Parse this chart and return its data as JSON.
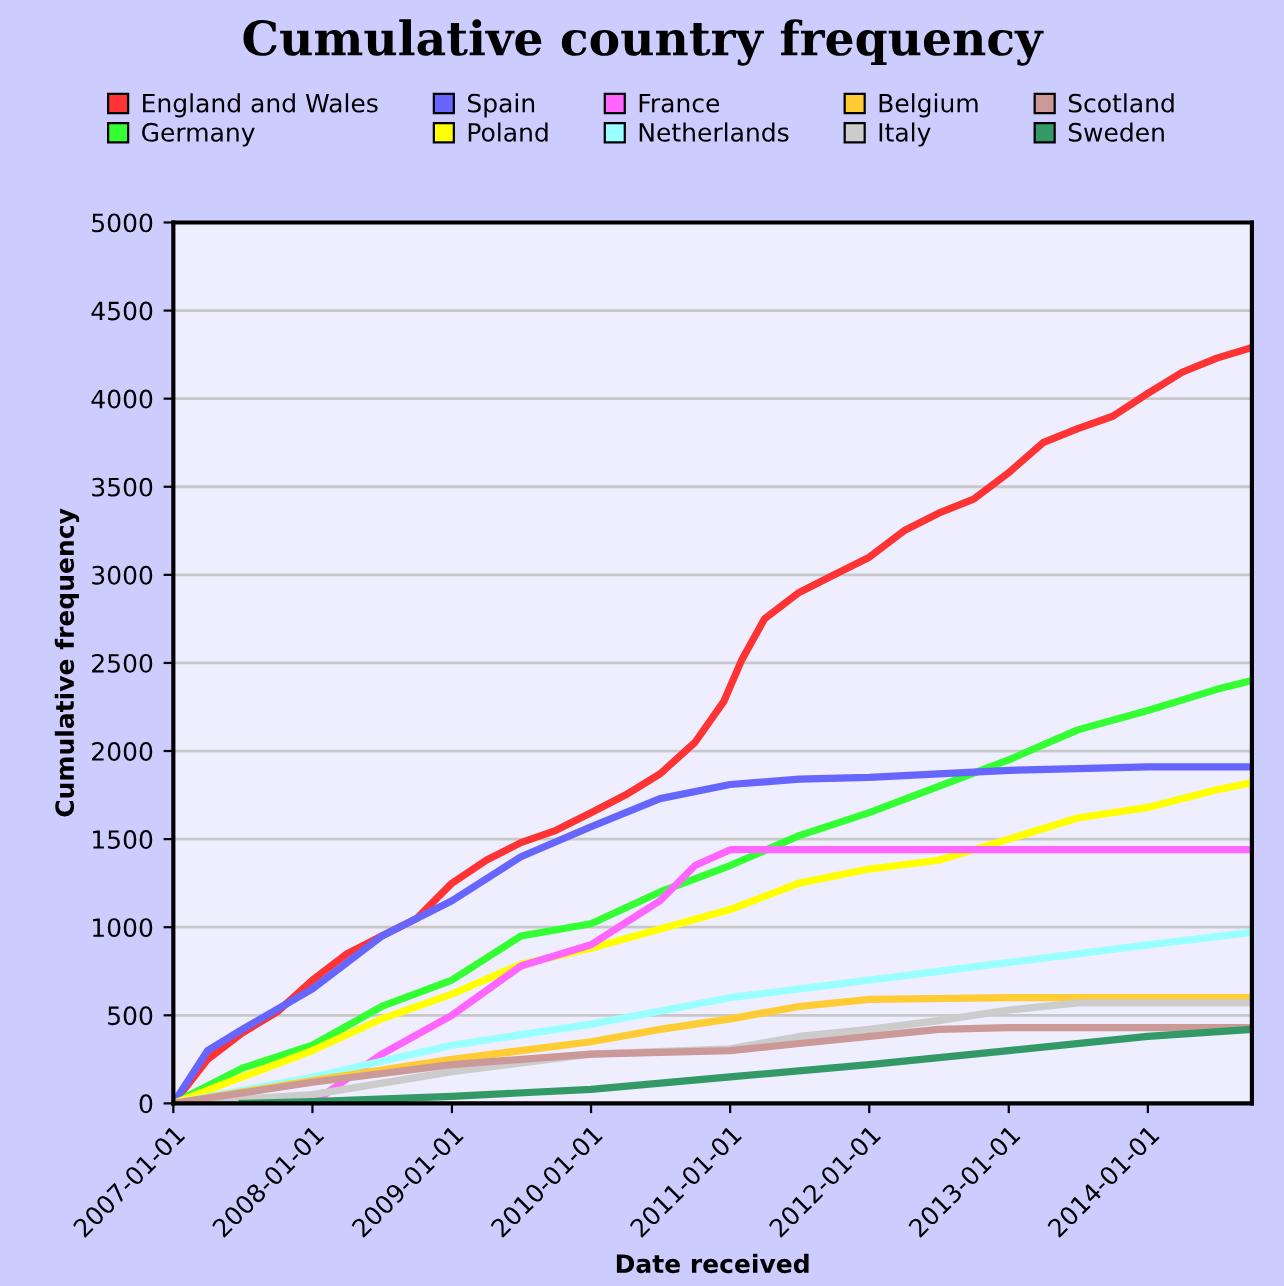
{
  "chart_data": {
    "type": "line",
    "title": "Cumulative country frequency",
    "xlabel": "Date received",
    "ylabel": "Cumulative frequency",
    "xlim": [
      "2007-01-01",
      "2014-10-01"
    ],
    "xticks": [
      "2007-01-01",
      "2008-01-01",
      "2009-01-01",
      "2010-01-01",
      "2011-01-01",
      "2012-01-01",
      "2013-01-01",
      "2014-01-01"
    ],
    "ylim": [
      0,
      5000
    ],
    "yticks": [
      0,
      500,
      1000,
      1500,
      2000,
      2500,
      3000,
      3500,
      4000,
      4500,
      5000
    ],
    "grid": "y",
    "legend": "top",
    "marker": "none",
    "line_style": "solid",
    "series": [
      {
        "name": "England and Wales",
        "color": "#ff3333",
        "x": [
          "2007-01-01",
          "2007-04-01",
          "2007-07-01",
          "2007-10-01",
          "2008-01-01",
          "2008-04-01",
          "2008-07-01",
          "2008-10-01",
          "2009-01-01",
          "2009-04-01",
          "2009-07-01",
          "2009-10-01",
          "2010-01-01",
          "2010-04-01",
          "2010-07-01",
          "2010-10-01",
          "2010-12-15",
          "2011-02-01",
          "2011-04-01",
          "2011-07-01",
          "2011-10-01",
          "2012-01-01",
          "2012-04-01",
          "2012-07-01",
          "2012-10-01",
          "2013-01-01",
          "2013-04-01",
          "2013-07-01",
          "2013-10-01",
          "2014-01-01",
          "2014-04-01",
          "2014-07-01",
          "2014-10-01"
        ],
        "values": [
          0,
          250,
          400,
          520,
          700,
          850,
          950,
          1050,
          1250,
          1380,
          1480,
          1550,
          1650,
          1750,
          1870,
          2050,
          2280,
          2520,
          2750,
          2900,
          3000,
          3100,
          3250,
          3350,
          3430,
          3580,
          3750,
          3830,
          3900,
          4030,
          4150,
          4230,
          4290
        ]
      },
      {
        "name": "Germany",
        "color": "#33ff33",
        "x": [
          "2007-01-01",
          "2007-07-01",
          "2008-01-01",
          "2008-07-01",
          "2009-01-01",
          "2009-07-01",
          "2010-01-01",
          "2010-07-01",
          "2011-01-01",
          "2011-07-01",
          "2012-01-01",
          "2012-07-01",
          "2013-01-01",
          "2013-07-01",
          "2014-01-01",
          "2014-07-01",
          "2014-10-01"
        ],
        "values": [
          0,
          200,
          330,
          550,
          700,
          950,
          1020,
          1200,
          1350,
          1520,
          1650,
          1800,
          1950,
          2120,
          2230,
          2350,
          2400
        ]
      },
      {
        "name": "Spain",
        "color": "#6666ff",
        "x": [
          "2007-01-01",
          "2007-04-01",
          "2007-07-01",
          "2008-01-01",
          "2008-07-01",
          "2009-01-01",
          "2009-07-01",
          "2010-01-01",
          "2010-07-01",
          "2011-01-01",
          "2011-07-01",
          "2012-01-01",
          "2012-07-01",
          "2013-01-01",
          "2013-07-01",
          "2014-01-01",
          "2014-10-01"
        ],
        "values": [
          0,
          300,
          420,
          650,
          950,
          1150,
          1400,
          1570,
          1730,
          1810,
          1840,
          1850,
          1870,
          1890,
          1900,
          1910,
          1910
        ]
      },
      {
        "name": "Poland",
        "color": "#ffff00",
        "x": [
          "2007-01-01",
          "2007-07-01",
          "2008-01-01",
          "2008-07-01",
          "2009-01-01",
          "2009-07-01",
          "2010-01-01",
          "2010-07-01",
          "2011-01-01",
          "2011-07-01",
          "2012-01-01",
          "2012-07-01",
          "2013-01-01",
          "2013-07-01",
          "2014-01-01",
          "2014-07-01",
          "2014-10-01"
        ],
        "values": [
          0,
          150,
          300,
          480,
          620,
          790,
          880,
          990,
          1100,
          1250,
          1330,
          1380,
          1500,
          1620,
          1680,
          1780,
          1820
        ]
      },
      {
        "name": "France",
        "color": "#ff66ff",
        "x": [
          "2008-01-01",
          "2008-07-01",
          "2009-01-01",
          "2009-07-01",
          "2010-01-01",
          "2010-07-01",
          "2010-10-01",
          "2011-01-01",
          "2014-10-01"
        ],
        "values": [
          0,
          280,
          500,
          780,
          900,
          1150,
          1350,
          1440,
          1440
        ]
      },
      {
        "name": "Netherlands",
        "color": "#99ffff",
        "x": [
          "2007-01-01",
          "2008-01-01",
          "2009-01-01",
          "2010-01-01",
          "2011-01-01",
          "2012-01-01",
          "2013-01-01",
          "2014-01-01",
          "2014-10-01"
        ],
        "values": [
          0,
          150,
          330,
          450,
          600,
          700,
          800,
          900,
          970
        ]
      },
      {
        "name": "Belgium",
        "color": "#ffcc33",
        "x": [
          "2007-01-01",
          "2008-01-01",
          "2009-01-01",
          "2010-01-01",
          "2010-07-01",
          "2011-01-01",
          "2011-07-01",
          "2012-01-01",
          "2013-01-01",
          "2014-10-01"
        ],
        "values": [
          0,
          130,
          250,
          350,
          420,
          480,
          550,
          590,
          600,
          600
        ]
      },
      {
        "name": "Italy",
        "color": "#cccccc",
        "x": [
          "2007-01-01",
          "2008-01-01",
          "2009-01-01",
          "2010-01-01",
          "2011-01-01",
          "2011-07-01",
          "2012-01-01",
          "2012-07-01",
          "2013-01-01",
          "2013-07-01",
          "2014-10-01"
        ],
        "values": [
          0,
          50,
          180,
          280,
          310,
          380,
          420,
          470,
          530,
          570,
          570
        ]
      },
      {
        "name": "Scotland",
        "color": "#cc9999",
        "x": [
          "2007-01-01",
          "2008-01-01",
          "2009-01-01",
          "2010-01-01",
          "2011-01-01",
          "2011-07-01",
          "2012-01-01",
          "2012-07-01",
          "2013-01-01",
          "2014-10-01"
        ],
        "values": [
          0,
          120,
          220,
          280,
          300,
          340,
          380,
          420,
          430,
          430
        ]
      },
      {
        "name": "Sweden",
        "color": "#339966",
        "x": [
          "2007-07-01",
          "2008-01-01",
          "2009-01-01",
          "2010-01-01",
          "2011-01-01",
          "2012-01-01",
          "2013-01-01",
          "2014-01-01",
          "2014-10-01"
        ],
        "values": [
          0,
          10,
          40,
          80,
          150,
          220,
          300,
          380,
          420
        ]
      }
    ]
  }
}
